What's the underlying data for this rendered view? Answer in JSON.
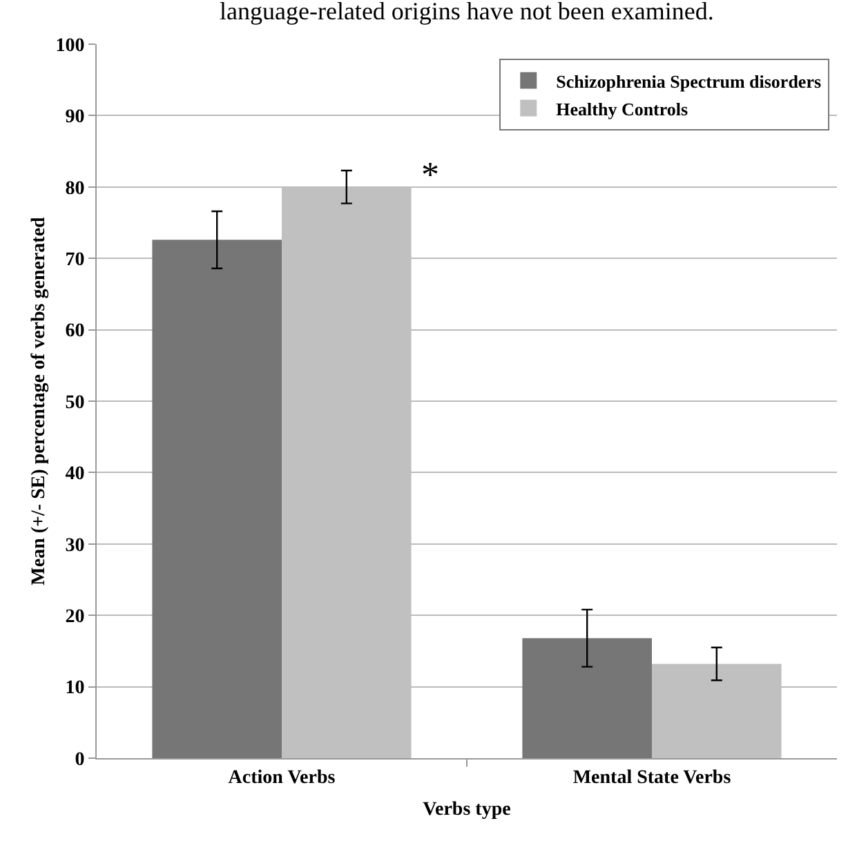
{
  "chart_data": {
    "type": "bar",
    "xlabel": "Verbs type",
    "ylabel": "Mean (+/- SE) percentage of verbs generated",
    "categories": [
      "Action Verbs",
      "Mental State Verbs"
    ],
    "series": [
      {
        "name": "Schizophrenia Spectrum disorders",
        "color": "#767676",
        "values": [
          72.6,
          16.8
        ],
        "errors": [
          4,
          4
        ]
      },
      {
        "name": "Healthy Controls",
        "color": "#c0c0c0",
        "values": [
          80,
          13.2
        ],
        "errors": [
          2.3,
          2.3
        ]
      }
    ],
    "ylim": [
      0,
      100
    ],
    "yticks": [
      0,
      10,
      20,
      30,
      40,
      50,
      60,
      70,
      80,
      90,
      100
    ],
    "grid": "y",
    "legend": "top right",
    "annotations": [
      "*",
      "language-related origins have not been examined."
    ]
  }
}
